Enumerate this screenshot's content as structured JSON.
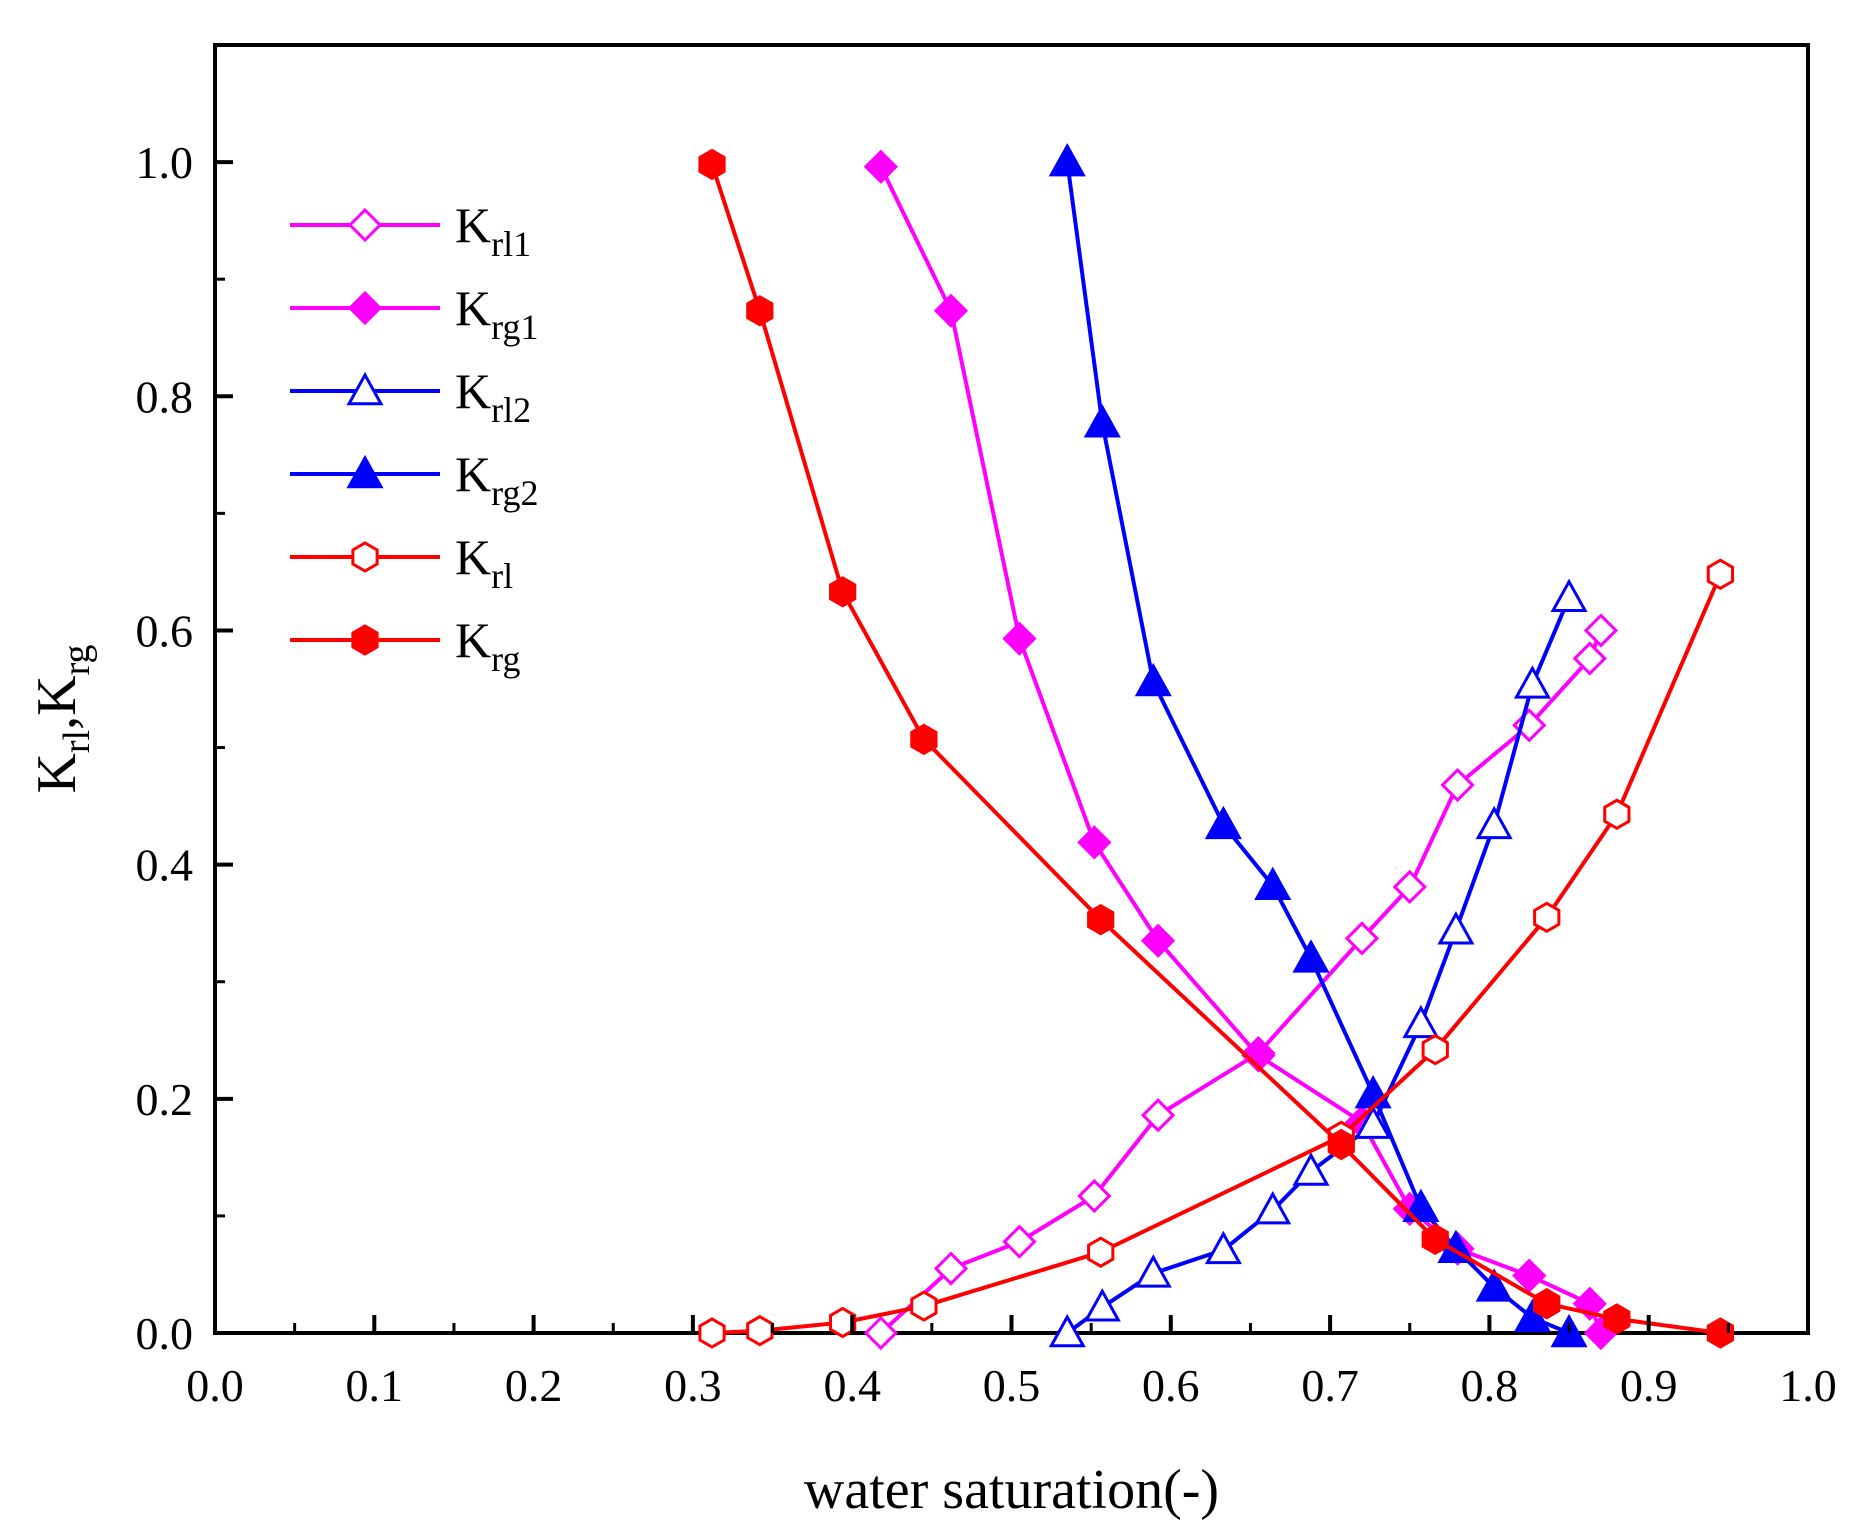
{
  "chart_data": {
    "type": "line",
    "title": "",
    "xlabel": "water saturation(-)",
    "ylabel": "",
    "ylabel_parts": [
      {
        "text": "K",
        "sub": false
      },
      {
        "text": "rl",
        "sub": true
      },
      {
        "text": ",K",
        "sub": false
      },
      {
        "text": "rg",
        "sub": true
      }
    ],
    "xlim": [
      0.0,
      1.0
    ],
    "ylim": [
      0.0,
      1.1
    ],
    "xticks": [
      0.0,
      0.1,
      0.2,
      0.3,
      0.4,
      0.5,
      0.6,
      0.7,
      0.8,
      0.9,
      1.0
    ],
    "xtick_labels": [
      "0.0",
      "0.1",
      "0.2",
      "0.3",
      "0.4",
      "0.5",
      "0.6",
      "0.7",
      "0.8",
      "0.9",
      "1.0"
    ],
    "yticks": [
      0.0,
      0.2,
      0.4,
      0.6,
      0.8,
      1.0
    ],
    "ytick_labels": [
      "0.0",
      "0.2",
      "0.4",
      "0.6",
      "0.8",
      "1.0"
    ],
    "grid": false,
    "legend_position": "top-left",
    "series": [
      {
        "id": "krl1",
        "name_base": "K",
        "name_sub": "rl1",
        "color": "#ff00ff",
        "marker": "diamond",
        "filled": false,
        "x": [
          0.418,
          0.462,
          0.505,
          0.552,
          0.592,
          0.655,
          0.72,
          0.75,
          0.78,
          0.825,
          0.863,
          0.87
        ],
        "y": [
          0.0,
          0.055,
          0.078,
          0.117,
          0.186,
          0.239,
          0.337,
          0.381,
          0.468,
          0.519,
          0.576,
          0.6
        ]
      },
      {
        "id": "krg1",
        "name_base": "K",
        "name_sub": "rg1",
        "color": "#ff00ff",
        "marker": "diamond",
        "filled": true,
        "x": [
          0.418,
          0.462,
          0.505,
          0.552,
          0.592,
          0.655,
          0.72,
          0.75,
          0.78,
          0.825,
          0.863,
          0.87
        ],
        "y": [
          0.996,
          0.873,
          0.593,
          0.419,
          0.335,
          0.237,
          0.18,
          0.106,
          0.072,
          0.049,
          0.025,
          0.0
        ]
      },
      {
        "id": "krl2",
        "name_base": "K",
        "name_sub": "rl2",
        "color": "#0000ff",
        "marker": "triangle",
        "filled": false,
        "x": [
          0.535,
          0.557,
          0.589,
          0.633,
          0.664,
          0.688,
          0.727,
          0.757,
          0.779,
          0.803,
          0.827,
          0.85
        ],
        "y": [
          0.0,
          0.022,
          0.051,
          0.071,
          0.105,
          0.138,
          0.178,
          0.264,
          0.344,
          0.434,
          0.554,
          0.628
        ]
      },
      {
        "id": "krg2",
        "name_base": "K",
        "name_sub": "rg2",
        "color": "#0000ff",
        "marker": "triangle",
        "filled": true,
        "x": [
          0.535,
          0.557,
          0.589,
          0.633,
          0.664,
          0.688,
          0.727,
          0.757,
          0.779,
          0.803,
          0.827,
          0.85
        ],
        "y": [
          1.0,
          0.777,
          0.556,
          0.434,
          0.382,
          0.32,
          0.204,
          0.107,
          0.072,
          0.039,
          0.013,
          0.0
        ]
      },
      {
        "id": "krl",
        "name_base": "K",
        "name_sub": "rl",
        "color": "#ff0000",
        "marker": "hexagon",
        "filled": false,
        "x": [
          0.312,
          0.342,
          0.394,
          0.445,
          0.556,
          0.707,
          0.766,
          0.836,
          0.88,
          0.945
        ],
        "y": [
          0.0,
          0.002,
          0.009,
          0.023,
          0.069,
          0.168,
          0.242,
          0.355,
          0.443,
          0.648
        ]
      },
      {
        "id": "krg",
        "name_base": "K",
        "name_sub": "rg",
        "color": "#ff0000",
        "marker": "hexagon",
        "filled": true,
        "x": [
          0.312,
          0.342,
          0.394,
          0.445,
          0.556,
          0.707,
          0.766,
          0.836,
          0.88,
          0.945
        ],
        "y": [
          0.998,
          0.873,
          0.633,
          0.507,
          0.353,
          0.161,
          0.08,
          0.025,
          0.012,
          0.0
        ]
      }
    ]
  }
}
